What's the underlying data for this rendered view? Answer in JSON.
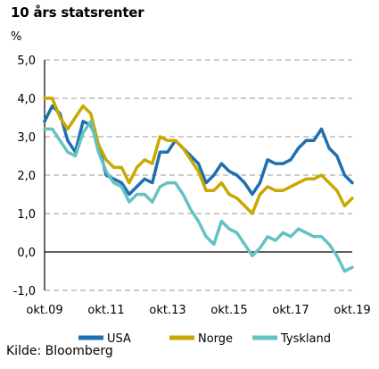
{
  "chart_data": {
    "type": "line",
    "title": "10 års statsrenter",
    "ylabel": "%",
    "source": "Kilde: Bloomberg",
    "ylim": [
      -1.0,
      5.0
    ],
    "y_ticks": [
      "5,0",
      "4,0",
      "3,0",
      "2,0",
      "1,0",
      "0,0",
      "-1,0"
    ],
    "y_tick_values": [
      5,
      4,
      3,
      2,
      1,
      0,
      -1
    ],
    "x_ticks": [
      "okt.09",
      "okt.11",
      "okt.13",
      "okt.15",
      "okt.17",
      "okt.19"
    ],
    "grid": true,
    "legend_position": "bottom",
    "series": [
      {
        "name": "USA",
        "color": "#1f6fad",
        "x": [
          "2009-10",
          "2010-01",
          "2010-04",
          "2010-07",
          "2010-10",
          "2011-01",
          "2011-04",
          "2011-07",
          "2011-10",
          "2012-01",
          "2012-04",
          "2012-07",
          "2012-10",
          "2013-01",
          "2013-04",
          "2013-07",
          "2013-10",
          "2014-01",
          "2014-04",
          "2014-07",
          "2014-10",
          "2015-01",
          "2015-04",
          "2015-07",
          "2015-10",
          "2016-01",
          "2016-04",
          "2016-07",
          "2016-10",
          "2017-01",
          "2017-04",
          "2017-07",
          "2017-10",
          "2018-01",
          "2018-04",
          "2018-07",
          "2018-10",
          "2019-01",
          "2019-04",
          "2019-07",
          "2019-10"
        ],
        "values": [
          3.4,
          3.8,
          3.6,
          2.9,
          2.6,
          3.4,
          3.3,
          2.8,
          2.0,
          1.9,
          1.8,
          1.5,
          1.7,
          1.9,
          1.8,
          2.6,
          2.6,
          2.9,
          2.7,
          2.5,
          2.3,
          1.8,
          2.0,
          2.3,
          2.1,
          2.0,
          1.8,
          1.5,
          1.8,
          2.4,
          2.3,
          2.3,
          2.4,
          2.7,
          2.9,
          2.9,
          3.2,
          2.7,
          2.5,
          2.0,
          1.8
        ]
      },
      {
        "name": "Norge",
        "color": "#c9a800",
        "x": [
          "2009-10",
          "2010-01",
          "2010-04",
          "2010-07",
          "2010-10",
          "2011-01",
          "2011-04",
          "2011-07",
          "2011-10",
          "2012-01",
          "2012-04",
          "2012-07",
          "2012-10",
          "2013-01",
          "2013-04",
          "2013-07",
          "2013-10",
          "2014-01",
          "2014-04",
          "2014-07",
          "2014-10",
          "2015-01",
          "2015-04",
          "2015-07",
          "2015-10",
          "2016-01",
          "2016-04",
          "2016-07",
          "2016-10",
          "2017-01",
          "2017-04",
          "2017-07",
          "2017-10",
          "2018-01",
          "2018-04",
          "2018-07",
          "2018-10",
          "2019-01",
          "2019-04",
          "2019-07",
          "2019-10"
        ],
        "values": [
          4.0,
          4.0,
          3.5,
          3.2,
          3.5,
          3.8,
          3.6,
          2.8,
          2.4,
          2.2,
          2.2,
          1.8,
          2.2,
          2.4,
          2.3,
          3.0,
          2.9,
          2.9,
          2.7,
          2.4,
          2.1,
          1.6,
          1.6,
          1.8,
          1.5,
          1.4,
          1.2,
          1.0,
          1.5,
          1.7,
          1.6,
          1.6,
          1.7,
          1.8,
          1.9,
          1.9,
          2.0,
          1.8,
          1.6,
          1.2,
          1.4
        ]
      },
      {
        "name": "Tyskland",
        "color": "#66c2c2",
        "x": [
          "2009-10",
          "2010-01",
          "2010-04",
          "2010-07",
          "2010-10",
          "2011-01",
          "2011-04",
          "2011-07",
          "2011-10",
          "2012-01",
          "2012-04",
          "2012-07",
          "2012-10",
          "2013-01",
          "2013-04",
          "2013-07",
          "2013-10",
          "2014-01",
          "2014-04",
          "2014-07",
          "2014-10",
          "2015-01",
          "2015-04",
          "2015-07",
          "2015-10",
          "2016-01",
          "2016-04",
          "2016-07",
          "2016-10",
          "2017-01",
          "2017-04",
          "2017-07",
          "2017-10",
          "2018-01",
          "2018-04",
          "2018-07",
          "2018-10",
          "2019-01",
          "2019-04",
          "2019-07",
          "2019-10"
        ],
        "values": [
          3.2,
          3.2,
          2.9,
          2.6,
          2.5,
          3.1,
          3.4,
          2.6,
          2.1,
          1.8,
          1.7,
          1.3,
          1.5,
          1.5,
          1.3,
          1.7,
          1.8,
          1.8,
          1.5,
          1.1,
          0.8,
          0.4,
          0.2,
          0.8,
          0.6,
          0.5,
          0.2,
          -0.1,
          0.1,
          0.4,
          0.3,
          0.5,
          0.4,
          0.6,
          0.5,
          0.4,
          0.4,
          0.2,
          -0.1,
          -0.5,
          -0.4
        ]
      }
    ]
  }
}
